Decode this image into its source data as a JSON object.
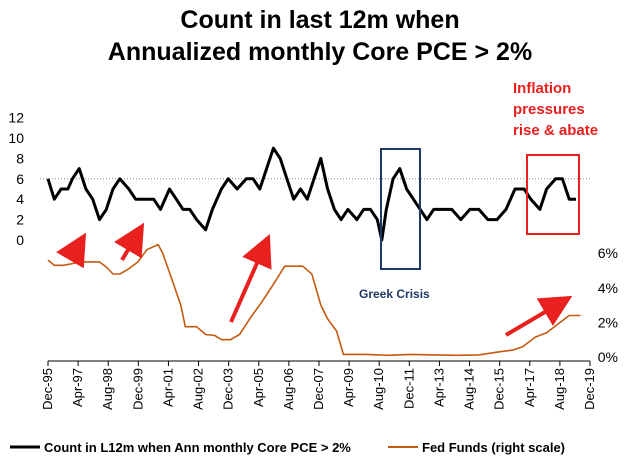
{
  "chart_data": {
    "type": "line",
    "title_line1": "Count in last 12m when",
    "title_line2": "Annualized monthly Core PCE > 2%",
    "x_tick_labels": [
      "Dec-95",
      "Apr-97",
      "Aug-98",
      "Dec-99",
      "Apr-01",
      "Aug-02",
      "Dec-03",
      "Apr-05",
      "Aug-06",
      "Dec-07",
      "Apr-09",
      "Aug-10",
      "Dec-11",
      "Apr-13",
      "Aug-14",
      "Dec-15",
      "Apr-17",
      "Aug-18",
      "Dec-19"
    ],
    "y_left": {
      "min": 0,
      "max": 12,
      "ticks": [
        "12",
        "10",
        "8",
        "6",
        "4",
        "2",
        "0"
      ]
    },
    "y_right": {
      "min": 0,
      "max": 6,
      "ticks": [
        "6%",
        "4%",
        "2%",
        "0%"
      ]
    },
    "reference_line_left": 6,
    "series": [
      {
        "name": "Count in L12m when Ann monthly Core PCE > 2%",
        "color": "#000000",
        "axis": "left",
        "x": [
          1995.92,
          1996.2,
          1996.5,
          1996.8,
          1997.0,
          1997.3,
          1997.6,
          1997.9,
          1998.2,
          1998.5,
          1998.8,
          1999.1,
          1999.5,
          1999.8,
          2000.2,
          2000.6,
          2000.9,
          2001.3,
          2001.6,
          2001.9,
          2002.2,
          2002.5,
          2002.9,
          2003.2,
          2003.6,
          2003.9,
          2004.3,
          2004.7,
          2005.0,
          2005.3,
          2005.6,
          2005.9,
          2006.2,
          2006.5,
          2006.8,
          2007.1,
          2007.4,
          2007.7,
          2008.0,
          2008.3,
          2008.6,
          2008.9,
          2009.2,
          2009.6,
          2009.9,
          2010.2,
          2010.5,
          2010.7,
          2010.9,
          2011.2,
          2011.5,
          2011.8,
          2012.1,
          2012.4,
          2012.7,
          2013.0,
          2013.4,
          2013.8,
          2014.2,
          2014.6,
          2015.0,
          2015.4,
          2015.8,
          2016.2,
          2016.6,
          2017.0,
          2017.3,
          2017.7,
          2018.0,
          2018.4,
          2018.7,
          2019.0,
          2019.3
        ],
        "values": [
          6,
          4,
          5,
          5,
          6,
          7,
          5,
          4,
          2,
          3,
          5,
          6,
          5,
          4,
          4,
          4,
          3,
          5,
          4,
          3,
          3,
          2,
          1,
          3,
          5,
          6,
          5,
          6,
          6,
          5,
          7,
          9,
          8,
          6,
          4,
          5,
          4,
          6,
          8,
          5,
          3,
          2,
          3,
          2,
          3,
          3,
          2,
          0,
          3,
          6,
          7,
          5,
          4,
          3,
          2,
          3,
          3,
          3,
          2,
          3,
          3,
          2,
          2,
          3,
          5,
          5,
          4,
          3,
          5,
          6,
          6,
          4,
          4
        ]
      },
      {
        "name": "Fed Funds (right scale)",
        "color": "#c55a11",
        "axis": "right",
        "x": [
          1995.92,
          1996.2,
          1996.6,
          1997.0,
          1997.4,
          1997.8,
          1998.2,
          1998.5,
          1998.8,
          1999.1,
          1999.5,
          1999.9,
          2000.3,
          2000.8,
          2001.0,
          2001.4,
          2001.8,
          2002.0,
          2002.5,
          2002.9,
          2003.3,
          2003.6,
          2004.0,
          2004.4,
          2004.9,
          2005.4,
          2005.9,
          2006.4,
          2006.8,
          2007.2,
          2007.6,
          2008.0,
          2008.3,
          2008.7,
          2009.0,
          2009.5,
          2010.0,
          2011.0,
          2012.0,
          2013.0,
          2014.0,
          2015.0,
          2015.9,
          2016.5,
          2016.95,
          2017.5,
          2018.0,
          2018.5,
          2019.0,
          2019.3,
          2019.5
        ],
        "values": [
          5.6,
          5.3,
          5.3,
          5.4,
          5.5,
          5.5,
          5.5,
          5.2,
          4.8,
          4.8,
          5.1,
          5.5,
          6.2,
          6.5,
          6.0,
          4.5,
          3.0,
          1.75,
          1.75,
          1.3,
          1.25,
          1.0,
          1.0,
          1.3,
          2.3,
          3.2,
          4.2,
          5.25,
          5.25,
          5.25,
          4.8,
          3.0,
          2.2,
          1.5,
          0.15,
          0.15,
          0.15,
          0.1,
          0.15,
          0.12,
          0.1,
          0.12,
          0.3,
          0.4,
          0.6,
          1.15,
          1.4,
          1.9,
          2.4,
          2.4,
          2.4
        ]
      }
    ],
    "annotations": {
      "inflation": [
        "Inflation",
        "pressures",
        "rise & abate"
      ],
      "greek": "Greek Crisis"
    },
    "legend": {
      "series1": "Count in L12m when Ann monthly Core PCE > 2%",
      "series2": "Fed Funds (right scale)"
    },
    "colors": {
      "count": "#000000",
      "fed": "#c55a11",
      "arrow": "#e8211f",
      "greek_box": "#1f3864",
      "inflation_box": "#e8211f",
      "ref_line": "#888888"
    }
  }
}
